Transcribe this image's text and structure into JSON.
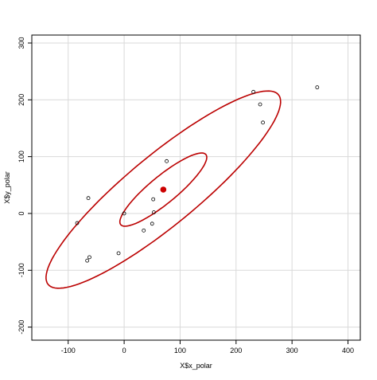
{
  "chart_data": {
    "type": "scatter",
    "title": "",
    "xlabel": "X$x_polar",
    "ylabel": "X$y_polar",
    "xlim": [
      -165,
      422
    ],
    "ylim": [
      -223,
      314
    ],
    "xticks": [
      -100,
      0,
      100,
      200,
      300,
      400
    ],
    "yticks": [
      -200,
      -100,
      0,
      100,
      200,
      300
    ],
    "grid": true,
    "points": [
      {
        "x": -84,
        "y": -17
      },
      {
        "x": -64,
        "y": 27
      },
      {
        "x": -62,
        "y": -77
      },
      {
        "x": -66,
        "y": -83
      },
      {
        "x": -10,
        "y": -70
      },
      {
        "x": 0,
        "y": 0
      },
      {
        "x": 35,
        "y": -30
      },
      {
        "x": 50,
        "y": -18
      },
      {
        "x": 52,
        "y": 25
      },
      {
        "x": 53,
        "y": 2
      },
      {
        "x": 76,
        "y": 92
      },
      {
        "x": 231,
        "y": 214
      },
      {
        "x": 243,
        "y": 192
      },
      {
        "x": 248,
        "y": 160
      },
      {
        "x": 345,
        "y": 222
      }
    ],
    "center": {
      "x": 70,
      "y": 42
    },
    "ellipses": [
      {
        "cx": 70,
        "cy": 42,
        "major_angle_deg": 39,
        "semi_major": 98,
        "semi_minor": 24
      },
      {
        "cx": 70,
        "cy": 42,
        "major_angle_deg": 39,
        "semi_major": 265,
        "semi_minor": 62
      }
    ],
    "colors": {
      "points": "#000000",
      "center": "#cc0000",
      "ellipse": "#bb0000",
      "grid": "#d9d9d9",
      "box": "#000000"
    }
  }
}
